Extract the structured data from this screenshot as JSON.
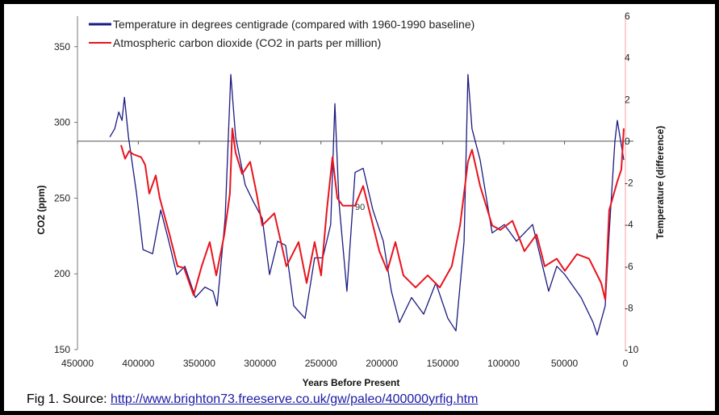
{
  "chart_data": {
    "type": "line",
    "xlabel": "Years Before Present",
    "ylabel": "CO2 (ppm)",
    "y2label": "Temperature (difference)",
    "xlim": [
      450000,
      0
    ],
    "ylim": [
      150,
      370
    ],
    "y2lim": [
      -10,
      6
    ],
    "xticks": [
      "450000",
      "400000",
      "350000",
      "300000",
      "250000",
      "200000",
      "150000",
      "100000",
      "50000",
      "0"
    ],
    "yticks": [
      "150",
      "200",
      "250",
      "300",
      "350"
    ],
    "y2ticks": [
      "-10",
      "-8",
      "-6",
      "-4",
      "-2",
      "0",
      "2",
      "4",
      "6"
    ],
    "reference_line": {
      "axis": "y2",
      "value": 0
    },
    "annotation": "90",
    "legend_position": "top",
    "series": [
      {
        "name": "Temperature in degrees centigrade (compared with 1960-1990 baseline)",
        "axis": "y2",
        "color": "#1a1a80",
        "points": [
          [
            423400,
            0.2
          ],
          [
            419400,
            0.6
          ],
          [
            416100,
            1.4
          ],
          [
            413400,
            1.0
          ],
          [
            411400,
            2.1
          ],
          [
            408100,
            0.2
          ],
          [
            401500,
            -2.5
          ],
          [
            396200,
            -5.2
          ],
          [
            388300,
            -5.4
          ],
          [
            381600,
            -3.3
          ],
          [
            375000,
            -4.8
          ],
          [
            368400,
            -6.4
          ],
          [
            361800,
            -6.0
          ],
          [
            353200,
            -7.5
          ],
          [
            345300,
            -7.0
          ],
          [
            338700,
            -7.2
          ],
          [
            335300,
            -7.9
          ],
          [
            328700,
            -3.7
          ],
          [
            324100,
            3.2
          ],
          [
            320100,
            0.2
          ],
          [
            312200,
            -2.1
          ],
          [
            305600,
            -2.9
          ],
          [
            298200,
            -3.7
          ],
          [
            292300,
            -6.4
          ],
          [
            285600,
            -4.8
          ],
          [
            279000,
            -5.0
          ],
          [
            272400,
            -7.9
          ],
          [
            263100,
            -8.5
          ],
          [
            255200,
            -5.6
          ],
          [
            248500,
            -5.6
          ],
          [
            242000,
            -4.0
          ],
          [
            238600,
            1.8
          ],
          [
            235300,
            -2.9
          ],
          [
            228700,
            -7.2
          ],
          [
            222000,
            -1.5
          ],
          [
            215400,
            -1.3
          ],
          [
            207400,
            -3.3
          ],
          [
            198800,
            -4.8
          ],
          [
            192200,
            -7.2
          ],
          [
            185600,
            -8.7
          ],
          [
            175600,
            -7.5
          ],
          [
            165700,
            -8.3
          ],
          [
            155700,
            -6.8
          ],
          [
            145800,
            -8.5
          ],
          [
            139200,
            -9.1
          ],
          [
            132500,
            -4.8
          ],
          [
            129300,
            3.2
          ],
          [
            126000,
            0.6
          ],
          [
            119300,
            -0.9
          ],
          [
            109400,
            -4.4
          ],
          [
            99400,
            -4.0
          ],
          [
            89500,
            -4.8
          ],
          [
            76200,
            -4.0
          ],
          [
            63000,
            -7.2
          ],
          [
            56300,
            -6.0
          ],
          [
            49700,
            -6.4
          ],
          [
            36400,
            -7.5
          ],
          [
            26500,
            -8.7
          ],
          [
            23200,
            -9.3
          ],
          [
            16600,
            -7.9
          ],
          [
            13300,
            -4.4
          ],
          [
            8600,
            0
          ],
          [
            6600,
            1.0
          ],
          [
            3300,
            -0.2
          ],
          [
            1300,
            -0.9
          ]
        ]
      },
      {
        "name": "Atmospheric carbon dioxide (CO2 in parts per million)",
        "axis": "y",
        "color": "#e8141e",
        "points": [
          [
            414200,
            285
          ],
          [
            410900,
            276
          ],
          [
            407600,
            281
          ],
          [
            404300,
            279
          ],
          [
            397700,
            277
          ],
          [
            394400,
            272
          ],
          [
            391000,
            253
          ],
          [
            385700,
            265
          ],
          [
            382400,
            250
          ],
          [
            374400,
            226
          ],
          [
            367800,
            205
          ],
          [
            362500,
            204
          ],
          [
            354600,
            186
          ],
          [
            348000,
            205
          ],
          [
            341400,
            221
          ],
          [
            336000,
            199
          ],
          [
            329400,
            226
          ],
          [
            324800,
            253
          ],
          [
            322800,
            296
          ],
          [
            320100,
            280
          ],
          [
            314800,
            266
          ],
          [
            308200,
            274
          ],
          [
            302900,
            253
          ],
          [
            298200,
            232
          ],
          [
            288300,
            240
          ],
          [
            278400,
            205
          ],
          [
            268400,
            221
          ],
          [
            261800,
            194
          ],
          [
            255200,
            221
          ],
          [
            249900,
            199
          ],
          [
            245200,
            242
          ],
          [
            240600,
            277
          ],
          [
            236600,
            250
          ],
          [
            232000,
            245
          ],
          [
            222000,
            245
          ],
          [
            215400,
            258
          ],
          [
            208800,
            237
          ],
          [
            202100,
            215
          ],
          [
            195500,
            202
          ],
          [
            188900,
            221
          ],
          [
            182300,
            199
          ],
          [
            172300,
            191
          ],
          [
            162400,
            199
          ],
          [
            152400,
            191
          ],
          [
            142600,
            205
          ],
          [
            135800,
            232
          ],
          [
            129300,
            274
          ],
          [
            126000,
            282
          ],
          [
            119300,
            258
          ],
          [
            109400,
            232
          ],
          [
            102800,
            229
          ],
          [
            92800,
            235
          ],
          [
            82900,
            215
          ],
          [
            73000,
            226
          ],
          [
            66300,
            205
          ],
          [
            56300,
            210
          ],
          [
            49700,
            202
          ],
          [
            39800,
            213
          ],
          [
            29800,
            210
          ],
          [
            19900,
            194
          ],
          [
            16600,
            183
          ],
          [
            13300,
            242
          ],
          [
            6600,
            261
          ],
          [
            3300,
            269
          ],
          [
            1300,
            296
          ]
        ]
      }
    ]
  },
  "caption": {
    "prefix": "Fig 1. Source: ",
    "link": "http://www.brighton73.freeserve.co.uk/gw/paleo/400000yrfig.htm"
  }
}
